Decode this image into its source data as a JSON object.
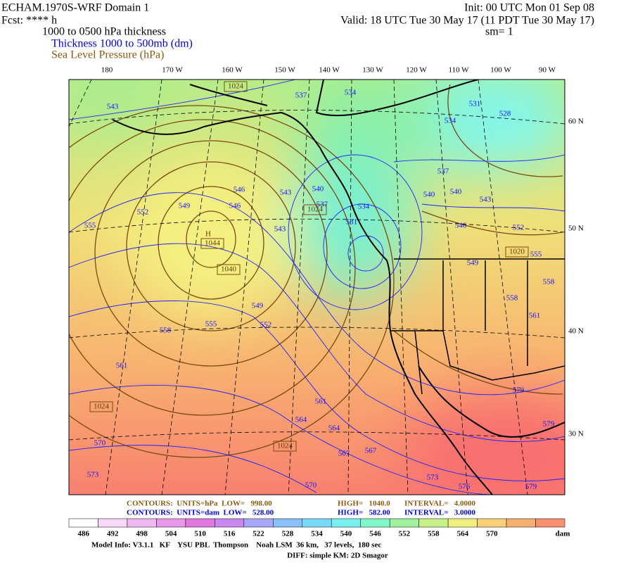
{
  "header": {
    "title": "ECHAM.1970S-WRF Domain 1",
    "fcst": "Fcst: **** h",
    "field": "1000 to 0500 hPa thickness",
    "legend_thickness": "Thickness 1000 to 500mb (dm)",
    "legend_slp": "Sea Level Pressure (hPa)",
    "init": "Init: 00 UTC Mon 01 Sep 08",
    "valid": "Valid: 18 UTC Tue 30 May 17 (11 PDT Tue 30 May 17)",
    "sm": "sm= 1"
  },
  "map": {
    "lon_labels": [
      "180",
      "170 W",
      "160 W",
      "150 W",
      "140 W",
      "130 W",
      "120 W",
      "110 W",
      "100 W",
      "90 W"
    ],
    "lat_labels": [
      "60 N",
      "50 N",
      "40 N",
      "30 N"
    ],
    "thickness_labels": [
      "543",
      "537",
      "534",
      "531",
      "528",
      "534",
      "537",
      "540",
      "540",
      "543",
      "546",
      "552",
      "555",
      "549",
      "558",
      "558",
      "561",
      "546",
      "546",
      "543",
      "540",
      "537",
      "534",
      "531",
      "543",
      "549",
      "552",
      "555",
      "549",
      "552",
      "555",
      "558",
      "561",
      "561",
      "564",
      "564",
      "567",
      "567",
      "570",
      "570",
      "573",
      "573",
      "576",
      "579",
      "579",
      "579"
    ],
    "pressure_labels": [
      "1024",
      "1024",
      "H",
      "1044",
      "1040",
      "1024",
      "1024",
      "1020"
    ]
  },
  "footer": {
    "slp_contours": [
      "CONTOURS:  UNITS=hPa  LOW=   998.00",
      "HIGH=   1040.0",
      "INTERVAL=   4.0000"
    ],
    "thickness_contours": [
      "CONTOURS:  UNITS=dam  LOW=   528.00",
      "HIGH=   582.00",
      "INTERVAL=   3.0000"
    ],
    "colorbar": {
      "labels": [
        "486",
        "492",
        "498",
        "504",
        "510",
        "516",
        "522",
        "528",
        "534",
        "540",
        "546",
        "552",
        "558",
        "564",
        "570"
      ],
      "unit": "dam",
      "colors": [
        "#ffffff",
        "#f8d8f8",
        "#f0b8f0",
        "#e898e8",
        "#e078e0",
        "#c888f0",
        "#a8a8f8",
        "#88c0f8",
        "#78d8f8",
        "#78f0f0",
        "#80f8c8",
        "#a0f0a0",
        "#c8f088",
        "#f0f080",
        "#f8d078",
        "#f8b070",
        "#f89070"
      ]
    },
    "model_info": "Model Info: V3.1.1   KF    YSU PBL  Thompson    Noah LSM  36 km,   37 levels,  180 sec",
    "diff": "DIFF: simple KM: 2D Smagor"
  }
}
